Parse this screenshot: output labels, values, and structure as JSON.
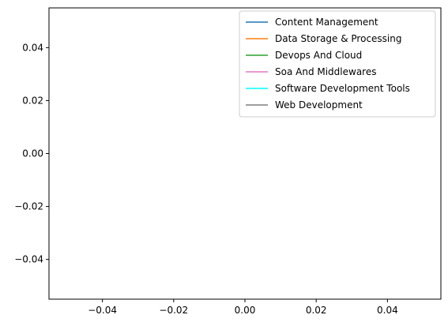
{
  "chart_data": {
    "type": "line",
    "title": "",
    "xlabel": "",
    "ylabel": "",
    "xlim": [
      -0.055,
      0.055
    ],
    "ylim": [
      -0.055,
      0.055
    ],
    "x_ticks": [
      -0.04,
      -0.02,
      0.0,
      0.02,
      0.04
    ],
    "y_ticks": [
      -0.04,
      -0.02,
      0.0,
      0.02,
      0.04
    ],
    "x_tick_labels": [
      "−0.04",
      "−0.02",
      "0.00",
      "0.02",
      "0.04"
    ],
    "y_tick_labels": [
      "−0.04",
      "−0.02",
      "0.00",
      "0.02",
      "0.04"
    ],
    "grid": false,
    "legend_position": "top-right",
    "series": [
      {
        "name": "Content Management",
        "color": "#1f77b4",
        "x": [],
        "y": []
      },
      {
        "name": "Data Storage & Processing",
        "color": "#ff7f0e",
        "x": [],
        "y": []
      },
      {
        "name": "Devops And Cloud",
        "color": "#2ca02c",
        "x": [],
        "y": []
      },
      {
        "name": "Soa And Middlewares",
        "color": "#e377c2",
        "x": [],
        "y": []
      },
      {
        "name": "Software Development Tools",
        "color": "#00ffff",
        "x": [],
        "y": []
      },
      {
        "name": "Web Development",
        "color": "#7f7f7f",
        "x": [],
        "y": []
      }
    ]
  }
}
